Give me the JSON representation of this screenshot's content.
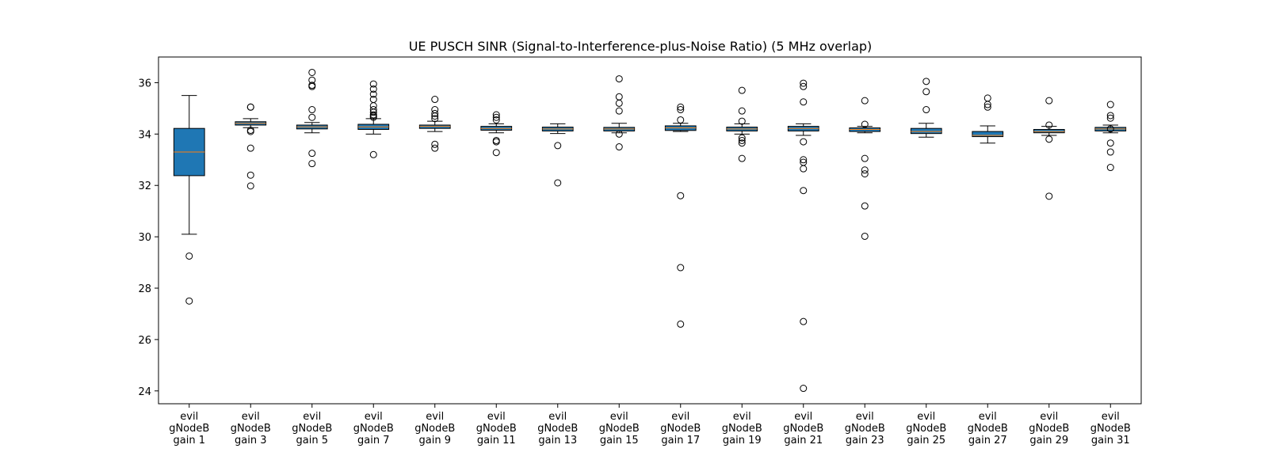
{
  "chart_data": {
    "type": "box",
    "title": "UE PUSCH SINR (Signal-to-Interference-plus-Noise Ratio) (5 MHz overlap)",
    "xlabel": "",
    "ylabel": "",
    "ylim": [
      23.5,
      37.0
    ],
    "yticks": [
      24,
      26,
      28,
      30,
      32,
      34,
      36
    ],
    "grid": false,
    "colors": {
      "box_fill": "#1f77b4",
      "median": "#ff7f0e",
      "edge": "#000000"
    },
    "categories": [
      [
        "evil",
        "gNodeB",
        "gain 1"
      ],
      [
        "evil",
        "gNodeB",
        "gain 3"
      ],
      [
        "evil",
        "gNodeB",
        "gain 5"
      ],
      [
        "evil",
        "gNodeB",
        "gain 7"
      ],
      [
        "evil",
        "gNodeB",
        "gain 9"
      ],
      [
        "evil",
        "gNodeB",
        "gain 11"
      ],
      [
        "evil",
        "gNodeB",
        "gain 13"
      ],
      [
        "evil",
        "gNodeB",
        "gain 15"
      ],
      [
        "evil",
        "gNodeB",
        "gain 17"
      ],
      [
        "evil",
        "gNodeB",
        "gain 19"
      ],
      [
        "evil",
        "gNodeB",
        "gain 21"
      ],
      [
        "evil",
        "gNodeB",
        "gain 23"
      ],
      [
        "evil",
        "gNodeB",
        "gain 25"
      ],
      [
        "evil",
        "gNodeB",
        "gain 27"
      ],
      [
        "evil",
        "gNodeB",
        "gain 29"
      ],
      [
        "evil",
        "gNodeB",
        "gain 31"
      ]
    ],
    "boxes": [
      {
        "whislo": 30.1,
        "q1": 32.38,
        "med": 33.3,
        "q3": 34.22,
        "whishi": 35.5,
        "fliers": [
          29.25,
          27.5
        ]
      },
      {
        "whislo": 34.25,
        "q1": 34.35,
        "med": 34.42,
        "q3": 34.48,
        "whishi": 34.6,
        "fliers": [
          35.05,
          35.05,
          34.15,
          34.1,
          33.45,
          32.4,
          31.98
        ]
      },
      {
        "whislo": 34.05,
        "q1": 34.2,
        "med": 34.28,
        "q3": 34.35,
        "whishi": 34.45,
        "fliers": [
          36.4,
          36.1,
          35.9,
          35.85,
          34.95,
          34.65,
          33.25,
          32.85
        ]
      },
      {
        "whislo": 34.0,
        "q1": 34.18,
        "med": 34.28,
        "q3": 34.38,
        "whishi": 34.6,
        "fliers": [
          35.95,
          35.75,
          35.55,
          35.35,
          35.1,
          34.95,
          34.85,
          34.75,
          34.7,
          34.65,
          33.2
        ]
      },
      {
        "whislo": 34.1,
        "q1": 34.22,
        "med": 34.3,
        "q3": 34.35,
        "whishi": 34.5,
        "fliers": [
          35.35,
          34.95,
          34.8,
          34.7,
          34.6,
          33.6,
          33.45
        ]
      },
      {
        "whislo": 34.05,
        "q1": 34.15,
        "med": 34.22,
        "q3": 34.3,
        "whishi": 34.4,
        "fliers": [
          34.75,
          34.65,
          34.55,
          33.75,
          33.7,
          33.28
        ]
      },
      {
        "whislo": 34.02,
        "q1": 34.12,
        "med": 34.2,
        "q3": 34.27,
        "whishi": 34.4,
        "fliers": [
          33.55,
          32.1
        ]
      },
      {
        "whislo": 34.05,
        "q1": 34.12,
        "med": 34.2,
        "q3": 34.26,
        "whishi": 34.42,
        "fliers": [
          36.15,
          35.45,
          35.2,
          34.9,
          34.0,
          33.5
        ]
      },
      {
        "whislo": 34.1,
        "q1": 34.14,
        "med": 34.24,
        "q3": 34.32,
        "whishi": 34.42,
        "fliers": [
          35.05,
          34.95,
          34.55,
          31.6,
          28.8,
          26.6
        ]
      },
      {
        "whislo": 34.0,
        "q1": 34.12,
        "med": 34.2,
        "q3": 34.27,
        "whishi": 34.4,
        "fliers": [
          35.7,
          34.9,
          34.5,
          33.85,
          33.75,
          33.65,
          33.05
        ]
      },
      {
        "whislo": 33.95,
        "q1": 34.12,
        "med": 34.22,
        "q3": 34.3,
        "whishi": 34.4,
        "fliers": [
          35.98,
          35.85,
          35.25,
          33.7,
          33.0,
          32.9,
          32.65,
          31.8,
          26.7,
          24.1
        ]
      },
      {
        "whislo": 34.05,
        "q1": 34.1,
        "med": 34.18,
        "q3": 34.24,
        "whishi": 34.3,
        "fliers": [
          35.3,
          34.38,
          33.05,
          32.6,
          32.45,
          31.2,
          30.02
        ]
      },
      {
        "whislo": 33.88,
        "q1": 34.02,
        "med": 34.1,
        "q3": 34.22,
        "whishi": 34.42,
        "fliers": [
          36.05,
          35.65,
          34.95
        ]
      },
      {
        "whislo": 33.65,
        "q1": 33.9,
        "med": 33.95,
        "q3": 34.1,
        "whishi": 34.32,
        "fliers": [
          35.4,
          35.15,
          35.05
        ]
      },
      {
        "whislo": 33.95,
        "q1": 34.05,
        "med": 34.1,
        "q3": 34.18,
        "whishi": 34.3,
        "fliers": [
          35.3,
          34.35,
          33.8,
          31.58
        ]
      },
      {
        "whislo": 34.05,
        "q1": 34.12,
        "med": 34.2,
        "q3": 34.26,
        "whishi": 34.35,
        "fliers": [
          35.15,
          34.72,
          34.62,
          34.2,
          33.65,
          33.3,
          32.7
        ]
      }
    ]
  }
}
